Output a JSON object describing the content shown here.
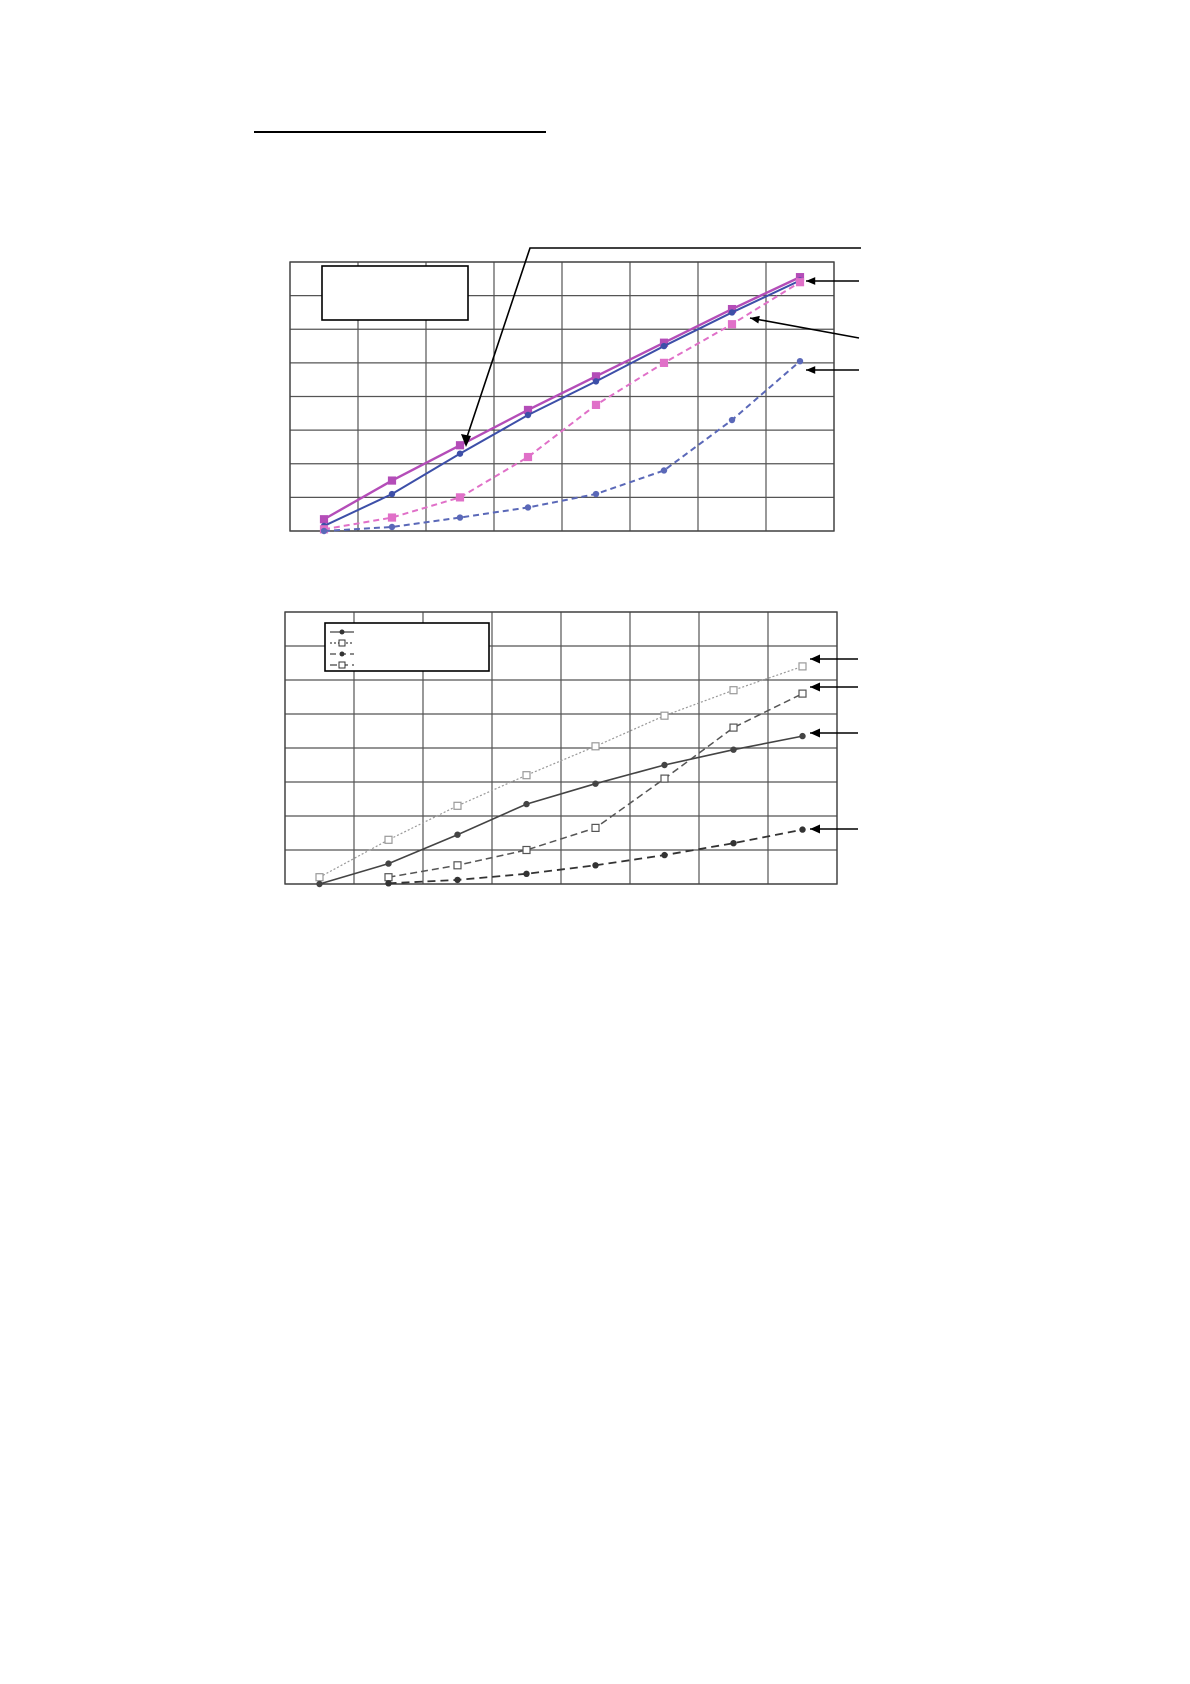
{
  "chart_data": [
    {
      "type": "line",
      "title": "",
      "xlabel": "",
      "ylabel": "",
      "x": [
        0,
        1,
        2,
        3,
        4,
        5,
        6,
        7
      ],
      "xlim": [
        -0.5,
        7.5
      ],
      "ylim": [
        0,
        8
      ],
      "grid": true,
      "legend": "top-left",
      "colors": {
        "s1": "#b44db8",
        "s2": "#3d4fa8",
        "s3": "#e070c8",
        "s4": "#5a68b8"
      },
      "series": [
        {
          "values": [
            0.35,
            1.5,
            2.55,
            3.6,
            4.6,
            5.6,
            6.6,
            7.55
          ]
        },
        {
          "values": [
            0.15,
            1.1,
            2.3,
            3.45,
            4.45,
            5.5,
            6.5,
            7.45
          ]
        },
        {
          "values": [
            0.05,
            0.4,
            1.0,
            2.2,
            3.75,
            5.0,
            6.15,
            7.4
          ]
        },
        {
          "values": [
            0.0,
            0.12,
            0.4,
            0.7,
            1.1,
            1.8,
            3.3,
            5.05
          ]
        }
      ]
    },
    {
      "type": "line",
      "title": "",
      "xlabel": "",
      "ylabel": "",
      "x": [
        0,
        1,
        2,
        3,
        4,
        5,
        6,
        7
      ],
      "xlim": [
        -0.5,
        7.5
      ],
      "ylim": [
        0,
        8
      ],
      "grid": true,
      "legend": "top-left",
      "colors": {
        "s1": "#999999",
        "s2": "#555555",
        "s3": "#444444",
        "s4": "#333333"
      },
      "series": [
        {
          "values": [
            0.2,
            1.3,
            2.3,
            3.2,
            4.05,
            4.95,
            5.7,
            6.4
          ]
        },
        {
          "values": [
            null,
            0.2,
            0.55,
            1.0,
            1.65,
            3.1,
            4.6,
            5.6
          ]
        },
        {
          "values": [
            0.0,
            0.6,
            1.45,
            2.35,
            2.95,
            3.5,
            3.95,
            4.35
          ]
        },
        {
          "values": [
            null,
            0.02,
            0.12,
            0.3,
            0.55,
            0.85,
            1.2,
            1.6
          ]
        }
      ]
    }
  ]
}
